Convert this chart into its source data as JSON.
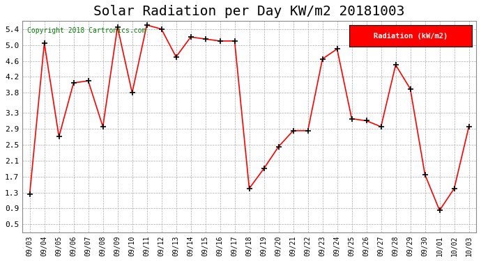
{
  "title": "Solar Radiation per Day KW/m2 20181003",
  "copyright": "Copyright 2018 Cartronics.com",
  "legend_label": "Radiation (kW/m2)",
  "x_labels": [
    "09/03",
    "09/04",
    "09/05",
    "09/06",
    "09/07",
    "09/08",
    "09/09",
    "09/10",
    "09/11",
    "09/12",
    "09/13",
    "09/14",
    "09/15",
    "09/16",
    "09/17",
    "09/18",
    "09/19",
    "09/20",
    "09/21",
    "09/22",
    "09/23",
    "09/24",
    "09/25",
    "09/26",
    "09/27",
    "09/28",
    "09/29",
    "09/30",
    "10/01",
    "10/02",
    "10/03"
  ],
  "y_values": [
    1.25,
    5.05,
    2.7,
    4.05,
    4.1,
    2.95,
    5.45,
    3.8,
    5.5,
    5.4,
    4.7,
    5.2,
    5.15,
    5.1,
    5.1,
    1.4,
    1.9,
    2.45,
    2.85,
    2.85,
    4.65,
    4.9,
    3.15,
    3.1,
    2.95,
    4.5,
    3.9,
    1.75,
    0.85,
    1.4,
    2.95
  ],
  "y_ticks": [
    0.5,
    0.9,
    1.3,
    1.7,
    2.1,
    2.5,
    2.9,
    3.3,
    3.8,
    4.2,
    4.6,
    5.0,
    5.4
  ],
  "ylim": [
    0.3,
    5.6
  ],
  "line_color": "red",
  "marker_color": "black",
  "background_color": "#ffffff",
  "plot_bg_color": "#ffffff",
  "grid_color": "#aaaaaa",
  "title_fontsize": 14,
  "legend_bg_color": "#ff0000",
  "legend_text_color": "#ffffff"
}
